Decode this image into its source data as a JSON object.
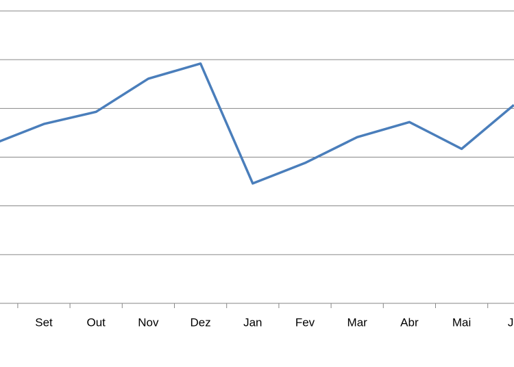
{
  "chart_data": {
    "type": "line",
    "categories": [
      "o",
      "Set",
      "Out",
      "Nov",
      "Dez",
      "Jan",
      "Fev",
      "Mar",
      "Abr",
      "Mai",
      "Ju"
    ],
    "series": [
      {
        "color": "#4a7ebb",
        "values": [
          3.26,
          3.68,
          3.93,
          4.61,
          4.92,
          2.46,
          2.88,
          3.41,
          3.72,
          3.17,
          4.07
        ]
      }
    ],
    "ylim": [
      0,
      6
    ],
    "yticks": [
      0,
      1,
      2,
      3,
      4,
      5,
      6
    ],
    "grid": true
  }
}
